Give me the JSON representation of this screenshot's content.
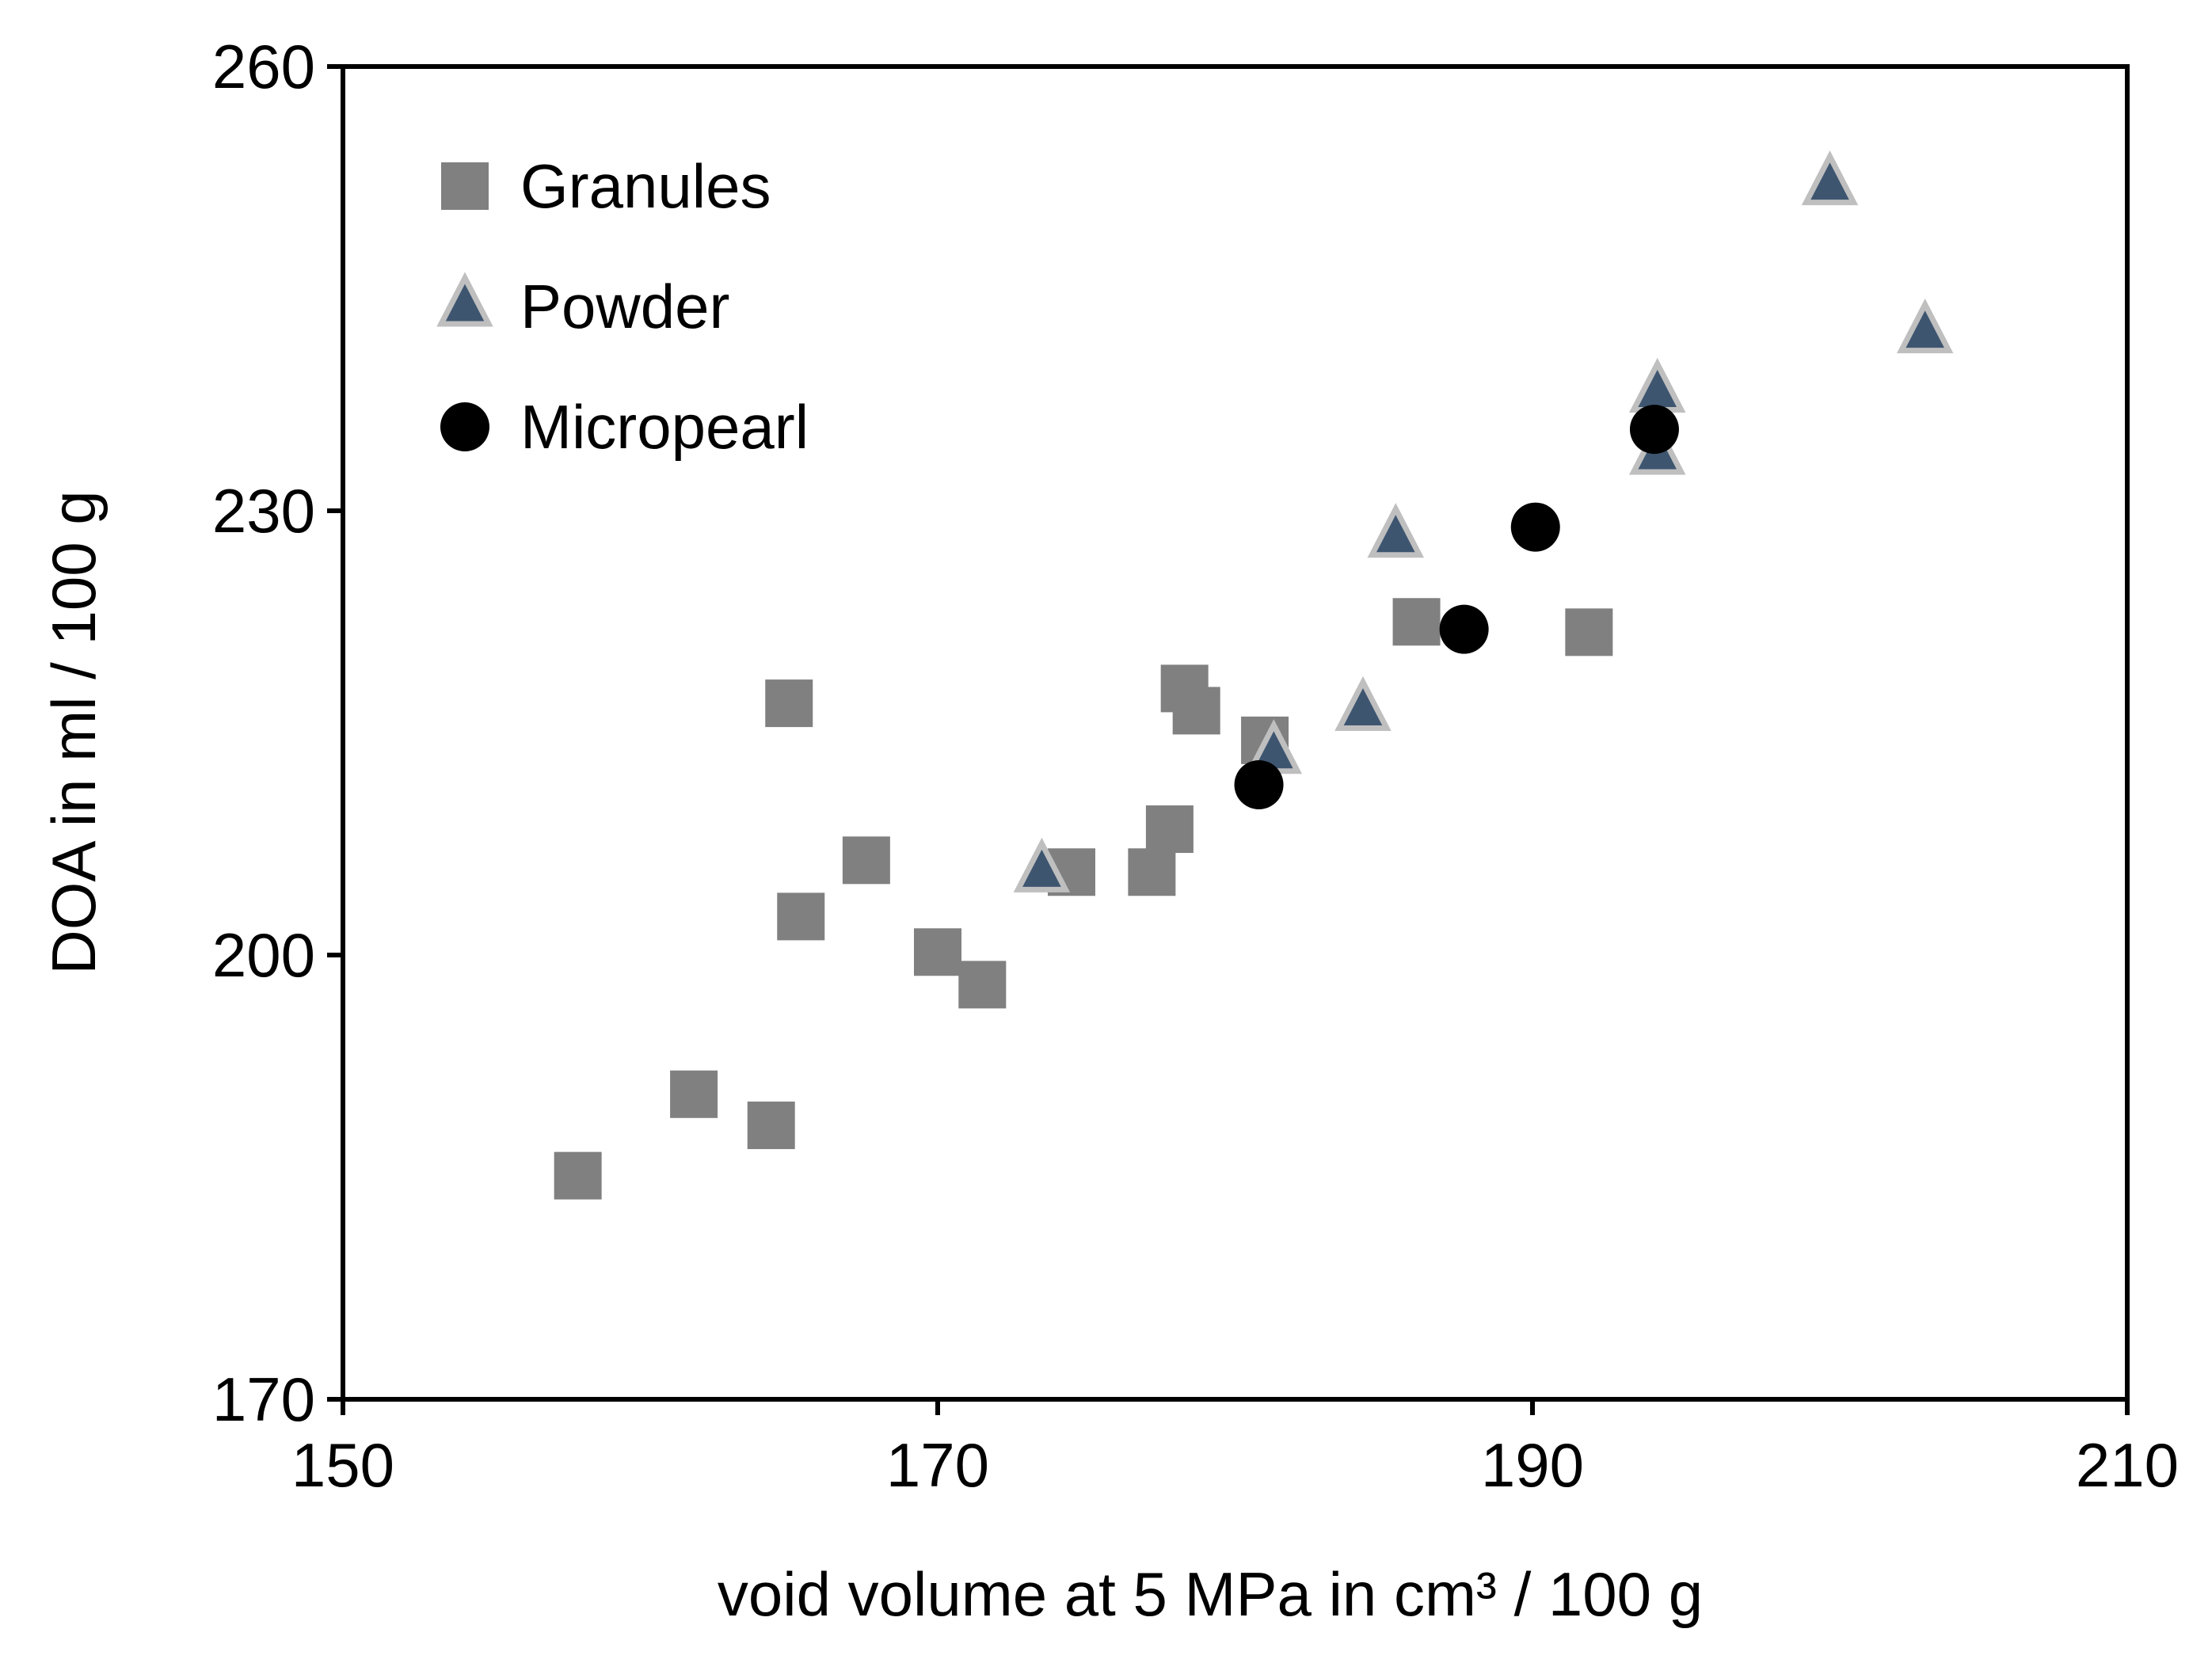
{
  "chart_data": {
    "type": "scatter",
    "title": "",
    "xlabel": "void volume at 5 MPa in cm³ / 100 g",
    "ylabel": "DOA in ml / 100 g",
    "xlim": [
      150,
      210
    ],
    "ylim": [
      170,
      260
    ],
    "xticks": [
      150,
      170,
      190,
      210
    ],
    "yticks": [
      170,
      200,
      230,
      260
    ],
    "xtick_labels": [
      "150",
      "170",
      "190",
      "210"
    ],
    "ytick_labels": [
      "170",
      "200",
      "230",
      "260"
    ],
    "grid": false,
    "legend_position": "top-left",
    "series": [
      {
        "name": "Granules",
        "marker": "square",
        "color": "#808080",
        "points": [
          {
            "x": 157.9,
            "y": 185.1
          },
          {
            "x": 161.8,
            "y": 190.6
          },
          {
            "x": 164.4,
            "y": 188.5
          },
          {
            "x": 165.0,
            "y": 217.0
          },
          {
            "x": 165.4,
            "y": 202.6
          },
          {
            "x": 167.6,
            "y": 206.4
          },
          {
            "x": 170.0,
            "y": 200.2
          },
          {
            "x": 171.5,
            "y": 198.0
          },
          {
            "x": 174.5,
            "y": 205.6
          },
          {
            "x": 177.2,
            "y": 205.6
          },
          {
            "x": 177.8,
            "y": 208.5
          },
          {
            "x": 178.3,
            "y": 218.0
          },
          {
            "x": 178.7,
            "y": 216.5
          },
          {
            "x": 181.0,
            "y": 214.5
          },
          {
            "x": 186.1,
            "y": 222.5
          },
          {
            "x": 191.9,
            "y": 221.8
          }
        ]
      },
      {
        "name": "Powder",
        "marker": "triangle",
        "color": "#3e5570",
        "edge_color": "#bfbfbf",
        "points": [
          {
            "x": 173.5,
            "y": 205.6
          },
          {
            "x": 181.3,
            "y": 213.6
          },
          {
            "x": 184.3,
            "y": 216.5
          },
          {
            "x": 185.4,
            "y": 228.2
          },
          {
            "x": 194.2,
            "y": 233.8
          },
          {
            "x": 194.2,
            "y": 238.0
          },
          {
            "x": 200.0,
            "y": 252.0
          },
          {
            "x": 203.2,
            "y": 242.0
          }
        ]
      },
      {
        "name": "Micropearl",
        "marker": "circle",
        "color": "#000000",
        "points": [
          {
            "x": 180.8,
            "y": 211.5
          },
          {
            "x": 187.7,
            "y": 222.0
          },
          {
            "x": 190.1,
            "y": 228.9
          },
          {
            "x": 194.1,
            "y": 235.5
          }
        ]
      }
    ]
  }
}
